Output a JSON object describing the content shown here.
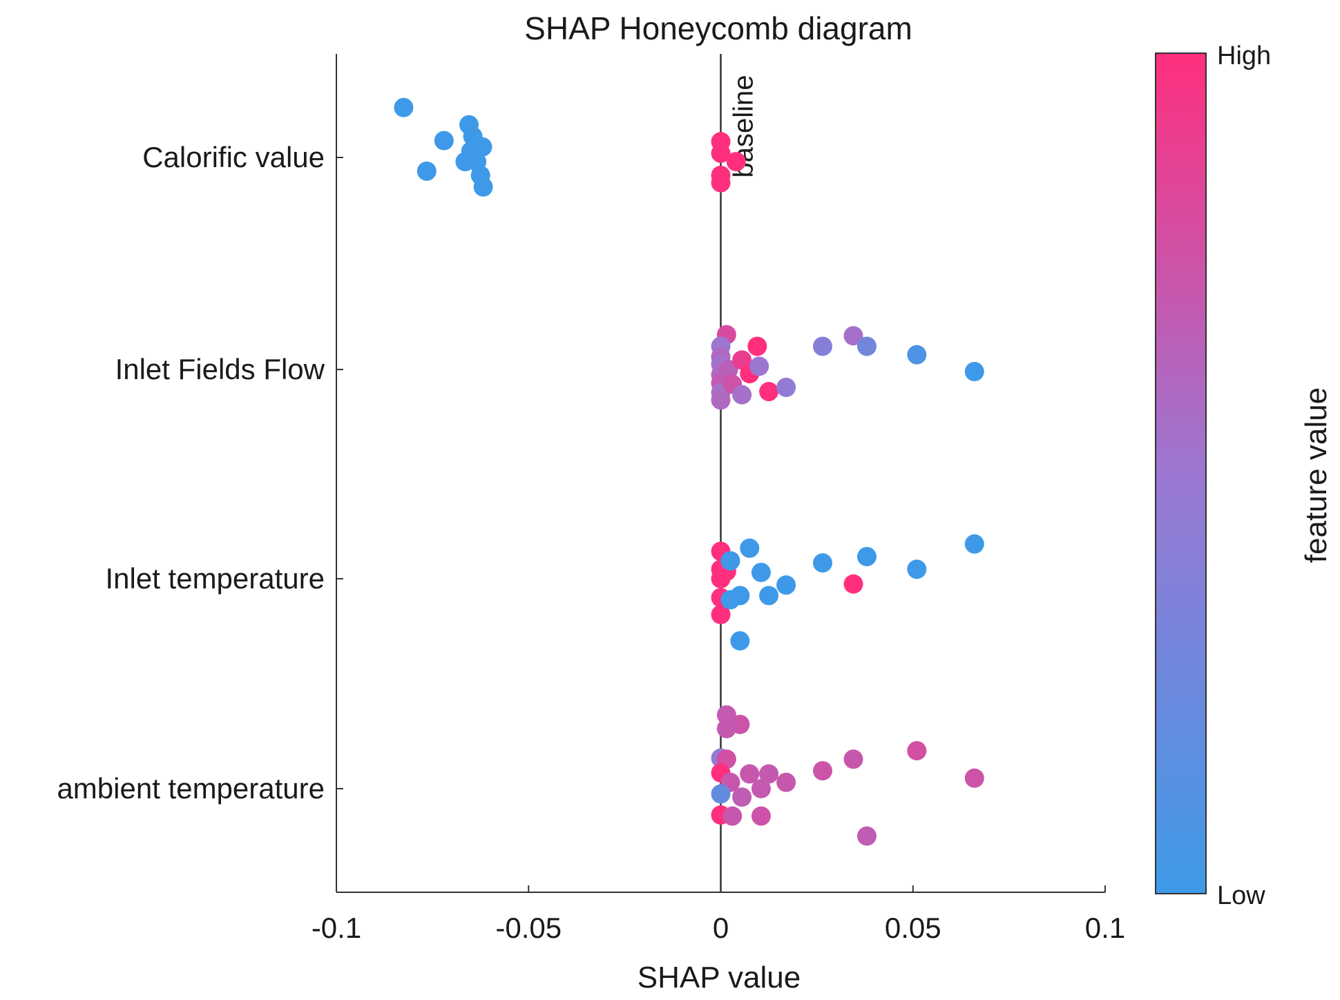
{
  "chart_data": {
    "type": "scatter",
    "subtype": "shap-beeswarm",
    "title": "SHAP Honeycomb diagram",
    "xlabel": "SHAP value",
    "xlim": [
      -0.1,
      0.1
    ],
    "xticks": [
      {
        "value": -0.1,
        "label": "-0.1"
      },
      {
        "value": -0.05,
        "label": "-0.05"
      },
      {
        "value": 0,
        "label": "0"
      },
      {
        "value": 0.05,
        "label": "0.05"
      },
      {
        "value": 0.1,
        "label": "0.1"
      }
    ],
    "baseline": {
      "value": 0,
      "label": "baseline"
    },
    "colorbar": {
      "label": "feature value",
      "high_label": "High",
      "low_label": "Low",
      "high_color": "#ff2f7e",
      "mid_color": "#9b77d2",
      "low_color": "#3e9ae8"
    },
    "grid": false,
    "features": [
      {
        "name": "Calorific value",
        "points": [
          {
            "x": -0.0825,
            "offset": 0.237,
            "feature_value": 0.0
          },
          {
            "x": -0.0655,
            "offset": 0.155,
            "feature_value": 0.0
          },
          {
            "x": -0.0645,
            "offset": 0.1,
            "feature_value": 0.0
          },
          {
            "x": -0.072,
            "offset": 0.08,
            "feature_value": 0.0
          },
          {
            "x": -0.062,
            "offset": 0.05,
            "feature_value": 0.0
          },
          {
            "x": -0.065,
            "offset": 0.03,
            "feature_value": 0.0
          },
          {
            "x": -0.0665,
            "offset": -0.02,
            "feature_value": 0.0
          },
          {
            "x": -0.0635,
            "offset": -0.02,
            "feature_value": 0.0
          },
          {
            "x": -0.0765,
            "offset": -0.065,
            "feature_value": 0.0
          },
          {
            "x": -0.0625,
            "offset": -0.085,
            "feature_value": 0.0
          },
          {
            "x": -0.0618,
            "offset": -0.14,
            "feature_value": 0.0
          },
          {
            "x": 0.0,
            "offset": 0.075,
            "feature_value": 1.0
          },
          {
            "x": 0.0,
            "offset": 0.02,
            "feature_value": 1.0
          },
          {
            "x": 0.004,
            "offset": -0.02,
            "feature_value": 1.0
          },
          {
            "x": 0.0,
            "offset": -0.085,
            "feature_value": 1.0
          },
          {
            "x": 0.0,
            "offset": -0.12,
            "feature_value": 1.0
          }
        ]
      },
      {
        "name": "Inlet Fields Flow",
        "points": [
          {
            "x": 0.0015,
            "offset": 0.165,
            "feature_value": 0.8
          },
          {
            "x": 0.0,
            "offset": 0.11,
            "feature_value": 0.5
          },
          {
            "x": 0.0,
            "offset": 0.06,
            "feature_value": 0.6
          },
          {
            "x": 0.0,
            "offset": 0.025,
            "feature_value": 0.55
          },
          {
            "x": 0.0,
            "offset": -0.025,
            "feature_value": 0.6
          },
          {
            "x": 0.0,
            "offset": -0.065,
            "feature_value": 0.7
          },
          {
            "x": 0.0,
            "offset": -0.11,
            "feature_value": 0.55
          },
          {
            "x": 0.0,
            "offset": -0.145,
            "feature_value": 0.6
          },
          {
            "x": 0.002,
            "offset": 0.0,
            "feature_value": 0.65
          },
          {
            "x": 0.003,
            "offset": -0.07,
            "feature_value": 0.75
          },
          {
            "x": 0.0055,
            "offset": 0.045,
            "feature_value": 0.9
          },
          {
            "x": 0.0075,
            "offset": -0.02,
            "feature_value": 1.0
          },
          {
            "x": 0.0055,
            "offset": -0.12,
            "feature_value": 0.55
          },
          {
            "x": 0.0095,
            "offset": 0.11,
            "feature_value": 1.0
          },
          {
            "x": 0.01,
            "offset": 0.015,
            "feature_value": 0.5
          },
          {
            "x": 0.0125,
            "offset": -0.105,
            "feature_value": 1.0
          },
          {
            "x": 0.017,
            "offset": -0.085,
            "feature_value": 0.45
          },
          {
            "x": 0.0265,
            "offset": 0.11,
            "feature_value": 0.38
          },
          {
            "x": 0.0345,
            "offset": 0.16,
            "feature_value": 0.55
          },
          {
            "x": 0.038,
            "offset": 0.11,
            "feature_value": 0.28
          },
          {
            "x": 0.051,
            "offset": 0.07,
            "feature_value": 0.08
          },
          {
            "x": 0.066,
            "offset": -0.01,
            "feature_value": 0.0
          }
        ]
      },
      {
        "name": "Inlet temperature",
        "points": [
          {
            "x": 0.0,
            "offset": 0.13,
            "feature_value": 1.0
          },
          {
            "x": 0.0,
            "offset": 0.045,
            "feature_value": 1.0
          },
          {
            "x": 0.0,
            "offset": 0.0,
            "feature_value": 1.0
          },
          {
            "x": 0.0,
            "offset": -0.09,
            "feature_value": 1.0
          },
          {
            "x": 0.0,
            "offset": -0.17,
            "feature_value": 1.0
          },
          {
            "x": 0.0015,
            "offset": 0.035,
            "feature_value": 1.0
          },
          {
            "x": 0.0025,
            "offset": 0.085,
            "feature_value": 0.0
          },
          {
            "x": 0.0025,
            "offset": -0.1,
            "feature_value": 0.0
          },
          {
            "x": 0.005,
            "offset": -0.08,
            "feature_value": 0.0
          },
          {
            "x": 0.0075,
            "offset": 0.145,
            "feature_value": 0.0
          },
          {
            "x": 0.0105,
            "offset": 0.03,
            "feature_value": 0.0
          },
          {
            "x": 0.0125,
            "offset": -0.08,
            "feature_value": 0.0
          },
          {
            "x": 0.017,
            "offset": -0.03,
            "feature_value": 0.0
          },
          {
            "x": 0.005,
            "offset": -0.295,
            "feature_value": 0.0
          },
          {
            "x": 0.0265,
            "offset": 0.075,
            "feature_value": 0.0
          },
          {
            "x": 0.0345,
            "offset": -0.025,
            "feature_value": 1.0
          },
          {
            "x": 0.038,
            "offset": 0.105,
            "feature_value": 0.0
          },
          {
            "x": 0.051,
            "offset": 0.045,
            "feature_value": 0.0
          },
          {
            "x": 0.066,
            "offset": 0.165,
            "feature_value": 0.0
          }
        ]
      },
      {
        "name": "ambient temperature",
        "points": [
          {
            "x": 0.0015,
            "offset": 0.35,
            "feature_value": 0.7
          },
          {
            "x": 0.005,
            "offset": 0.305,
            "feature_value": 0.75
          },
          {
            "x": 0.0015,
            "offset": 0.285,
            "feature_value": 0.7
          },
          {
            "x": 0.0,
            "offset": 0.145,
            "feature_value": 0.45
          },
          {
            "x": 0.0015,
            "offset": 0.14,
            "feature_value": 0.78
          },
          {
            "x": 0.0,
            "offset": 0.075,
            "feature_value": 1.0
          },
          {
            "x": 0.0025,
            "offset": 0.03,
            "feature_value": 0.72
          },
          {
            "x": 0.0075,
            "offset": 0.07,
            "feature_value": 0.72
          },
          {
            "x": 0.0125,
            "offset": 0.07,
            "feature_value": 0.7
          },
          {
            "x": 0.017,
            "offset": 0.03,
            "feature_value": 0.72
          },
          {
            "x": 0.0105,
            "offset": 0.0,
            "feature_value": 0.7
          },
          {
            "x": 0.0,
            "offset": -0.025,
            "feature_value": 0.2
          },
          {
            "x": 0.0055,
            "offset": -0.04,
            "feature_value": 0.68
          },
          {
            "x": 0.0,
            "offset": -0.125,
            "feature_value": 1.0
          },
          {
            "x": 0.003,
            "offset": -0.13,
            "feature_value": 0.72
          },
          {
            "x": 0.0105,
            "offset": -0.13,
            "feature_value": 0.75
          },
          {
            "x": 0.0265,
            "offset": 0.085,
            "feature_value": 0.75
          },
          {
            "x": 0.0345,
            "offset": 0.14,
            "feature_value": 0.72
          },
          {
            "x": 0.038,
            "offset": -0.225,
            "feature_value": 0.68
          },
          {
            "x": 0.051,
            "offset": 0.18,
            "feature_value": 0.78
          },
          {
            "x": 0.066,
            "offset": 0.05,
            "feature_value": 0.75
          }
        ]
      }
    ]
  }
}
